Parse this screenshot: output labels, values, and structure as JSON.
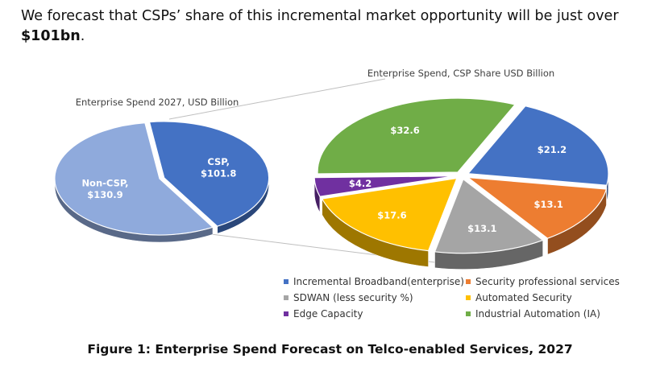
{
  "headline": {
    "text": "We forecast that CSPs’ share of this incremental market opportunity will be just over",
    "emphasis": "$101bn",
    "suffix": "."
  },
  "caption": "Figure 1: Enterprise Spend Forecast on Telco-enabled Services, 2027",
  "chart_data": [
    {
      "type": "pie",
      "title": "Enterprise Spend 2027, USD Billion",
      "three_d": true,
      "slices": [
        {
          "name": "CSP",
          "value": 101.8,
          "label": "CSP,\n$101.8",
          "color": "#4472c4",
          "exploded": true
        },
        {
          "name": "Non-CSP",
          "value": 130.9,
          "label": "Non-CSP,\n$130.9",
          "color": "#8faadc",
          "exploded": false
        }
      ]
    },
    {
      "type": "pie",
      "title": "Enterprise Spend, CSP Share USD Billion",
      "three_d": true,
      "exploded": true,
      "legend": "bottom",
      "slices": [
        {
          "name": "Incremental Broadband(enterprise)",
          "value": 21.2,
          "label": "$21.2",
          "color": "#4472c4"
        },
        {
          "name": "Security professional services",
          "value": 13.1,
          "label": "$13.1",
          "color": "#ed7d31"
        },
        {
          "name": "SDWAN (less security %)",
          "value": 13.1,
          "label": "$13.1",
          "color": "#a5a5a5"
        },
        {
          "name": "Automated Security",
          "value": 17.6,
          "label": "$17.6",
          "color": "#ffc000"
        },
        {
          "name": "Edge Capacity",
          "value": 4.2,
          "label": "$4.2",
          "color": "#7030a0"
        },
        {
          "name": "Industrial Automation (IA)",
          "value": 32.6,
          "label": "$32.6",
          "color": "#70ad47"
        }
      ]
    }
  ]
}
